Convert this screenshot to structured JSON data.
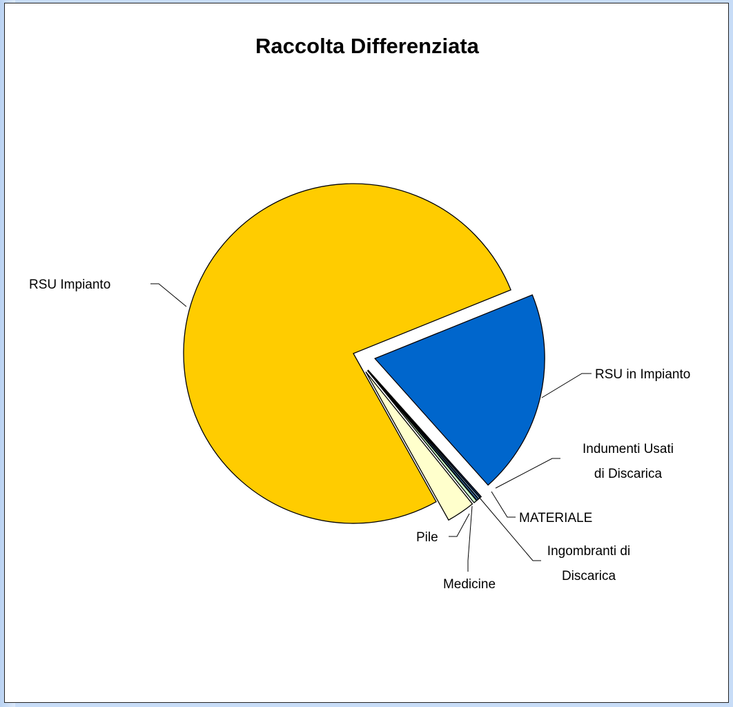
{
  "chart_data": {
    "type": "pie",
    "title": "Raccolta Differenziata",
    "slices": [
      {
        "label": "RSU Impianto",
        "value": 77.0,
        "color": "#ffcc00",
        "exploded": false
      },
      {
        "label": "RSU in Impianto",
        "value": 19.5,
        "color": "#0066cc",
        "exploded": true
      },
      {
        "label": "Indumenti Usati di Discarica",
        "value": 0.15,
        "color": "#003366",
        "exploded": true
      },
      {
        "label": "MATERIALE",
        "value": 0.15,
        "color": "#99ccff",
        "exploded": true
      },
      {
        "label": "Ingombranti di Discarica",
        "value": 0.2,
        "color": "#336699",
        "exploded": true
      },
      {
        "label": "Medicine",
        "value": 0.3,
        "color": "#ccffcc",
        "exploded": true
      },
      {
        "label": "Pile",
        "value": 2.7,
        "color": "#ffffcc",
        "exploded": true
      }
    ],
    "legend": "none"
  }
}
